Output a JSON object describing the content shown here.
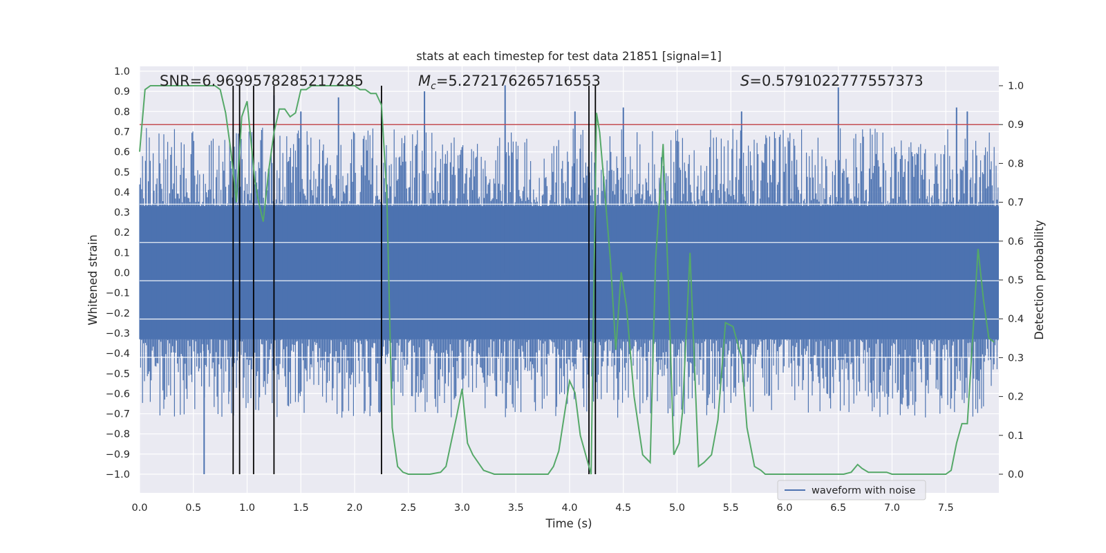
{
  "chart_data": {
    "type": "line",
    "title": "stats at each timestep for test data 21851 [signal=1]",
    "xlabel": "Time (s)",
    "ylabel_left": "Whitened strain",
    "ylabel_right": "Detection probability",
    "xlim": [
      0.0,
      8.0
    ],
    "ylim_left": [
      -1.0,
      1.0
    ],
    "ylim_right": [
      0.0,
      1.0
    ],
    "x_ticks": [
      "0.0",
      "0.5",
      "1.0",
      "1.5",
      "2.0",
      "2.5",
      "3.0",
      "3.5",
      "4.0",
      "4.5",
      "5.0",
      "5.5",
      "6.0",
      "6.5",
      "7.0",
      "7.5"
    ],
    "y_left_ticks": [
      "1.0",
      "0.9",
      "0.8",
      "0.7",
      "0.6",
      "0.5",
      "0.4",
      "0.3",
      "0.2",
      "0.1",
      "0.0",
      "−0.1",
      "−0.2",
      "−0.3",
      "−0.4",
      "−0.5",
      "−0.6",
      "−0.7",
      "−0.8",
      "−0.9",
      "−1.0"
    ],
    "y_right_ticks": [
      "1.0",
      "0.9",
      "0.8",
      "0.7",
      "0.6",
      "0.5",
      "0.4",
      "0.3",
      "0.2",
      "0.1",
      "0.0"
    ],
    "annotations": {
      "snr": "SNR=6.969957828521728​5",
      "mc_symbol": "M",
      "mc_sub": "c",
      "mc_value": "=5.272176265716553",
      "s_symbol": "S",
      "s_value": "=0.5791022777557373"
    },
    "legend": {
      "label": "waveform with noise",
      "location": "lower right"
    },
    "threshold_probability": 0.9,
    "vertical_markers_s": [
      0.87,
      0.93,
      1.06,
      1.25,
      2.25,
      4.18,
      4.24
    ],
    "waveform": {
      "name": "waveform with noise",
      "color": "#4c72b0",
      "core_amplitude": 0.33,
      "typical_peak_amplitude": 0.6,
      "spike_times_s": [
        0.6,
        1.25,
        1.5,
        1.85,
        2.65,
        3.4,
        4.05,
        4.5,
        5.6,
        6.5,
        7.6,
        7.7
      ],
      "spike_values": [
        -1.0,
        0.88,
        0.8,
        0.87,
        0.9,
        0.93,
        0.8,
        0.82,
        0.8,
        0.92,
        0.82,
        0.8
      ]
    },
    "series": [
      {
        "name": "detection probability",
        "axis": "right",
        "color": "#55a868",
        "x": [
          0.0,
          0.05,
          0.1,
          0.2,
          0.3,
          0.4,
          0.5,
          0.6,
          0.7,
          0.75,
          0.8,
          0.85,
          0.9,
          0.95,
          1.0,
          1.07,
          1.1,
          1.15,
          1.2,
          1.25,
          1.3,
          1.35,
          1.4,
          1.45,
          1.5,
          1.55,
          1.6,
          1.7,
          1.8,
          1.9,
          2.0,
          2.05,
          2.1,
          2.15,
          2.2,
          2.25,
          2.3,
          2.35,
          2.4,
          2.45,
          2.5,
          2.6,
          2.7,
          2.8,
          2.85,
          2.95,
          3.0,
          3.05,
          3.1,
          3.2,
          3.3,
          3.5,
          3.7,
          3.8,
          3.85,
          3.9,
          4.0,
          4.05,
          4.1,
          4.15,
          4.2,
          4.25,
          4.28,
          4.32,
          4.38,
          4.43,
          4.48,
          4.53,
          4.6,
          4.68,
          4.75,
          4.8,
          4.87,
          4.92,
          4.97,
          5.02,
          5.05,
          5.12,
          5.2,
          5.25,
          5.32,
          5.38,
          5.45,
          5.52,
          5.6,
          5.65,
          5.72,
          5.78,
          5.82,
          5.88,
          6.0,
          6.2,
          6.4,
          6.55,
          6.62,
          6.68,
          6.72,
          6.78,
          6.85,
          6.95,
          7.0,
          7.1,
          7.2,
          7.3,
          7.4,
          7.45,
          7.5,
          7.55,
          7.6,
          7.65,
          7.7,
          7.75,
          7.8,
          7.85,
          7.9,
          7.95
        ],
        "y": [
          0.83,
          0.99,
          1.0,
          1.0,
          1.0,
          1.0,
          1.0,
          1.0,
          1.0,
          0.99,
          0.93,
          0.83,
          0.7,
          0.92,
          0.96,
          0.76,
          0.71,
          0.65,
          0.78,
          0.88,
          0.94,
          0.94,
          0.92,
          0.93,
          0.99,
          0.99,
          1.0,
          1.0,
          1.0,
          1.0,
          1.0,
          0.99,
          0.99,
          0.98,
          0.98,
          0.95,
          0.72,
          0.12,
          0.02,
          0.005,
          0.0,
          0.0,
          0.0,
          0.005,
          0.02,
          0.15,
          0.22,
          0.08,
          0.05,
          0.01,
          0.0,
          0.0,
          0.0,
          0.0,
          0.02,
          0.06,
          0.24,
          0.21,
          0.1,
          0.05,
          0.0,
          0.93,
          0.88,
          0.75,
          0.55,
          0.32,
          0.52,
          0.43,
          0.2,
          0.05,
          0.03,
          0.55,
          0.85,
          0.48,
          0.05,
          0.08,
          0.16,
          0.57,
          0.02,
          0.03,
          0.05,
          0.14,
          0.39,
          0.38,
          0.3,
          0.12,
          0.02,
          0.01,
          0.0,
          0.0,
          0.0,
          0.0,
          0.0,
          0.0,
          0.005,
          0.025,
          0.015,
          0.005,
          0.005,
          0.005,
          0.0,
          0.0,
          0.0,
          0.0,
          0.0,
          0.0,
          0.0,
          0.01,
          0.08,
          0.13,
          0.13,
          0.35,
          0.58,
          0.45,
          0.35,
          0.34
        ]
      }
    ]
  }
}
